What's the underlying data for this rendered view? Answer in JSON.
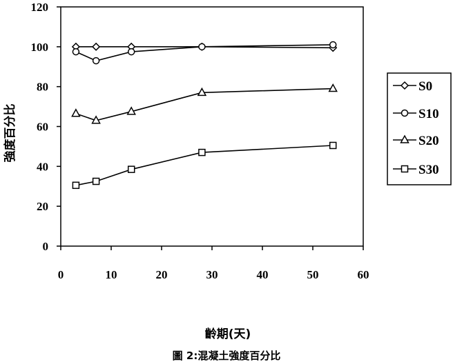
{
  "chart_data": {
    "type": "line",
    "title": "",
    "xlabel": "齡期(天)",
    "ylabel": "強度百分比",
    "xlim": [
      0,
      60
    ],
    "ylim": [
      0,
      120
    ],
    "x_ticks": [
      "0",
      "10",
      "20",
      "30",
      "40",
      "50",
      "60"
    ],
    "y_ticks": [
      "0",
      "20",
      "40",
      "60",
      "80",
      "100",
      "120"
    ],
    "grid": false,
    "legend_position": "right",
    "series": [
      {
        "name": "S0",
        "marker": "diamond",
        "x": [
          3,
          7,
          14,
          28,
          54
        ],
        "y": [
          100,
          100,
          100,
          100,
          99.5
        ]
      },
      {
        "name": "S10",
        "marker": "circle",
        "x": [
          3,
          7,
          14,
          28,
          54
        ],
        "y": [
          97.5,
          93,
          97.5,
          100,
          101
        ]
      },
      {
        "name": "S20",
        "marker": "triangle",
        "x": [
          3,
          7,
          14,
          28,
          54
        ],
        "y": [
          66.5,
          63,
          67.5,
          77,
          79
        ]
      },
      {
        "name": "S30",
        "marker": "square",
        "x": [
          3,
          7,
          14,
          28,
          54
        ],
        "y": [
          30.5,
          32.5,
          38.5,
          47,
          50.5
        ]
      }
    ]
  },
  "figure": {
    "caption": "圖 2:混凝土強度百分比"
  }
}
